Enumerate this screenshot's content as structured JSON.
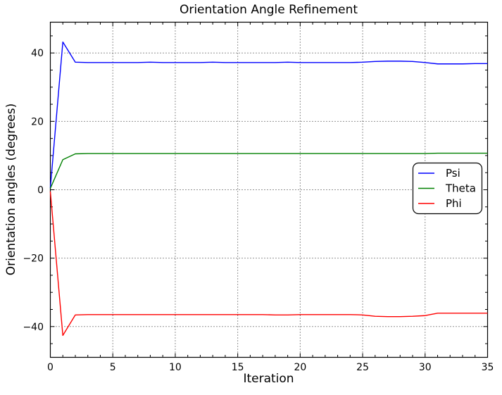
{
  "figure": {
    "title": "Orientation Angle Refinement",
    "xlabel": "Iteration",
    "ylabel": "Orientation angles (degrees)"
  },
  "chart_data": {
    "type": "line",
    "title": "Orientation Angle Refinement",
    "xlabel": "Iteration",
    "ylabel": "Orientation angles (degrees)",
    "x": [
      0,
      1,
      2,
      3,
      4,
      5,
      6,
      7,
      8,
      9,
      10,
      11,
      12,
      13,
      14,
      15,
      16,
      17,
      18,
      19,
      20,
      21,
      22,
      23,
      24,
      25,
      26,
      27,
      28,
      29,
      30,
      31,
      32,
      33,
      34,
      35
    ],
    "series": [
      {
        "name": "Psi",
        "color": "#0000ff",
        "values": [
          0.5,
          43.2,
          37.3,
          37.2,
          37.2,
          37.2,
          37.2,
          37.2,
          37.3,
          37.2,
          37.2,
          37.2,
          37.2,
          37.3,
          37.2,
          37.2,
          37.2,
          37.2,
          37.2,
          37.3,
          37.2,
          37.2,
          37.2,
          37.2,
          37.2,
          37.3,
          37.5,
          37.6,
          37.6,
          37.5,
          37.2,
          36.8,
          36.8,
          36.8,
          36.9,
          36.9
        ]
      },
      {
        "name": "Theta",
        "color": "#008000",
        "values": [
          0.4,
          8.8,
          10.5,
          10.6,
          10.6,
          10.6,
          10.6,
          10.6,
          10.6,
          10.6,
          10.6,
          10.6,
          10.6,
          10.6,
          10.6,
          10.6,
          10.6,
          10.6,
          10.6,
          10.6,
          10.6,
          10.6,
          10.6,
          10.6,
          10.6,
          10.6,
          10.6,
          10.6,
          10.6,
          10.6,
          10.6,
          10.7,
          10.7,
          10.7,
          10.7,
          10.7
        ]
      },
      {
        "name": "Phi",
        "color": "#ff0000",
        "values": [
          -0.5,
          -42.6,
          -36.6,
          -36.5,
          -36.5,
          -36.5,
          -36.5,
          -36.5,
          -36.5,
          -36.5,
          -36.5,
          -36.5,
          -36.5,
          -36.5,
          -36.5,
          -36.5,
          -36.5,
          -36.5,
          -36.6,
          -36.6,
          -36.5,
          -36.5,
          -36.5,
          -36.5,
          -36.5,
          -36.6,
          -37.0,
          -37.1,
          -37.1,
          -37.0,
          -36.8,
          -36.1,
          -36.1,
          -36.1,
          -36.1,
          -36.1
        ]
      }
    ],
    "xlim": [
      0,
      35
    ],
    "ylim": [
      -49,
      49
    ],
    "xticks": [
      0,
      5,
      10,
      15,
      20,
      25,
      30,
      35
    ],
    "yticks": [
      -40,
      -20,
      0,
      20,
      40
    ],
    "x_minor_step": 1,
    "y_minor_step": 5,
    "grid": true,
    "grid_style": "dotted",
    "legend": {
      "position": "middle-right",
      "entries": [
        "Psi",
        "Theta",
        "Phi"
      ]
    }
  }
}
